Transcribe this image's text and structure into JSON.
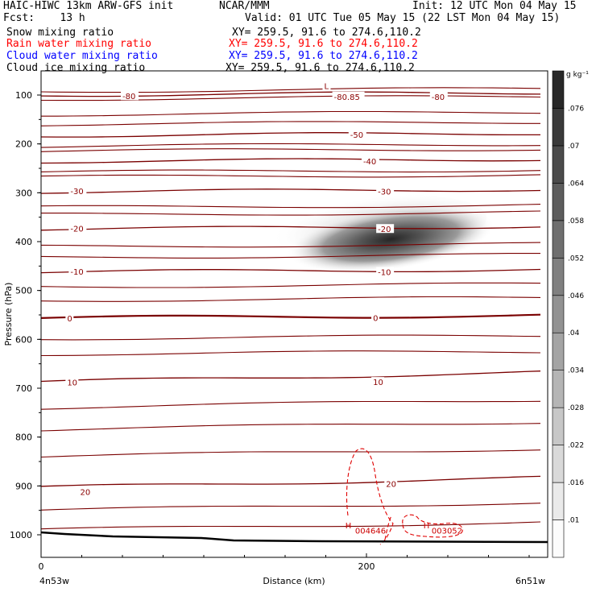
{
  "header": {
    "line1_left": "HAIC-HIWC 13km ARW-GFS init",
    "line1_mid": "NCAR/MMM",
    "line1_right": "Init: 12 UTC Mon 04 May 15",
    "line2_left": "Fcst:    13 h",
    "line2_right": "Valid: 01 UTC Tue 05 May 15 (22 LST Mon 04 May 15)",
    "fields": [
      {
        "name": "Snow mixing ratio",
        "xy": "XY= 259.5, 91.6 to 274.6,110.2",
        "color": "#000000"
      },
      {
        "name": "Rain water mixing ratio",
        "xy": "XY= 259.5, 91.6 to 274.6,110.2",
        "color": "#ff0000"
      },
      {
        "name": "Cloud water mixing ratio",
        "xy": "XY= 259.5, 91.6 to 274.6,110.2",
        "color": "#0000ff"
      },
      {
        "name": "Cloud ice mixing ratio",
        "xy": "XY= 259.5, 91.6 to 274.6,110.2",
        "color": "#000000"
      }
    ]
  },
  "chart_data": {
    "type": "heatmap",
    "xlabel": "Distance (km)",
    "ylabel": "Pressure (hPa)",
    "x_ticks": [
      0,
      200
    ],
    "y_ticks": [
      100,
      200,
      300,
      400,
      500,
      600,
      700,
      800,
      900,
      1000
    ],
    "x_endpoint_labels": [
      "4n53w",
      "6n51w"
    ],
    "colorbar": {
      "unit": "g kg⁻¹",
      "labels": [
        ".01",
        ".016",
        ".022",
        ".028",
        ".034",
        ".04",
        ".046",
        ".052",
        ".058",
        ".064",
        ".07",
        ".076"
      ]
    },
    "snow_max": {
      "x_km": 215,
      "p_hpa": 395
    },
    "temperature_contours": [
      {
        "value": -80,
        "p_hpa": 100
      },
      {
        "value": -50,
        "p_hpa": 183
      },
      {
        "value": -40,
        "p_hpa": 236
      },
      {
        "value": -30,
        "p_hpa": 298
      },
      {
        "value": -20,
        "p_hpa": 374
      },
      {
        "value": -10,
        "p_hpa": 462
      },
      {
        "value": 0,
        "p_hpa": 556
      },
      {
        "value": 10,
        "p_hpa": 687
      },
      {
        "value": 20,
        "p_hpa": 903
      }
    ],
    "contour_labels": [
      {
        "text": "-80",
        "x_km": 50,
        "p_hpa": 102
      },
      {
        "text": "-80",
        "x_km": 240,
        "p_hpa": 103
      },
      {
        "text": "-80.85",
        "x_km": 180,
        "p_hpa": 103
      },
      {
        "text": "L",
        "x_km": 174,
        "p_hpa": 81
      },
      {
        "text": "-50",
        "x_km": 190,
        "p_hpa": 181
      },
      {
        "text": "-40",
        "x_km": 198,
        "p_hpa": 235
      },
      {
        "text": "-30",
        "x_km": 18,
        "p_hpa": 296
      },
      {
        "text": "-30",
        "x_km": 207,
        "p_hpa": 297
      },
      {
        "text": "-20",
        "x_km": 18,
        "p_hpa": 373
      },
      {
        "text": "-20",
        "x_km": 207,
        "p_hpa": 374
      },
      {
        "text": "-10",
        "x_km": 18,
        "p_hpa": 461
      },
      {
        "text": "-10",
        "x_km": 207,
        "p_hpa": 462
      },
      {
        "text": "0",
        "x_km": 16,
        "p_hpa": 557
      },
      {
        "text": "0",
        "x_km": 204,
        "p_hpa": 556
      },
      {
        "text": "10",
        "x_km": 16,
        "p_hpa": 688
      },
      {
        "text": "10",
        "x_km": 204,
        "p_hpa": 687
      },
      {
        "text": "20",
        "x_km": 24,
        "p_hpa": 912
      },
      {
        "text": "20",
        "x_km": 212,
        "p_hpa": 895
      }
    ],
    "rain_labels": [
      {
        "text": "H",
        "x_km": 190,
        "p_hpa": 980
      },
      {
        "text": "004646",
        "x_km": 196,
        "p_hpa": 991
      },
      {
        "text": "H",
        "x_km": 238,
        "p_hpa": 980
      },
      {
        "text": "003052",
        "x_km": 243,
        "p_hpa": 991
      }
    ],
    "grid": false
  }
}
